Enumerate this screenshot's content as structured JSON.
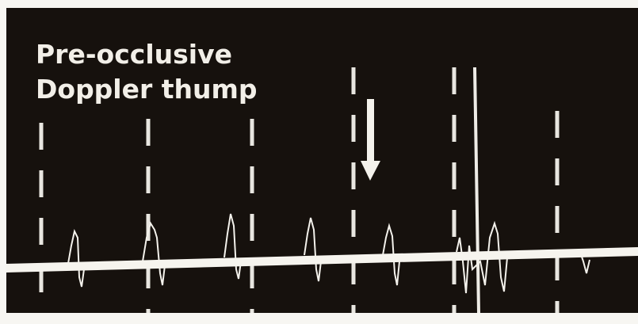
{
  "annotation": {
    "lines": [
      "Pre-occlusive",
      "Doppler thump"
    ]
  }
}
